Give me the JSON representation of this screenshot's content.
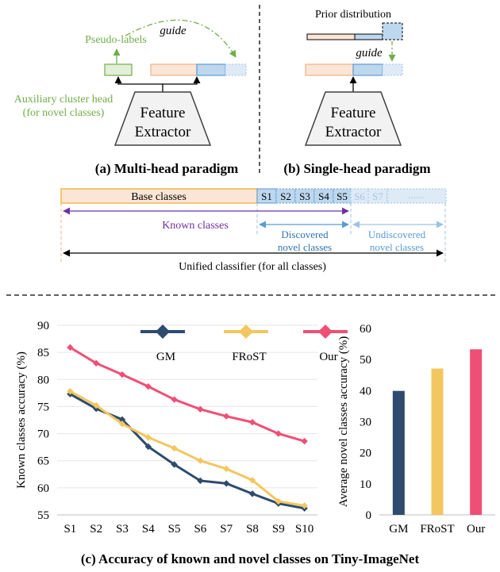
{
  "colors": {
    "green": "#70ad47",
    "green_fill": "#e2efd9",
    "orange_fill": "#fbe5d6",
    "orange_stroke": "#f4b183",
    "base_stroke": "#f2b84b",
    "blue_fill": "#bdd7ee",
    "blue_stroke": "#5b9bd5",
    "blue_light": "#deebf7",
    "purple": "#7030a0",
    "gm": "#2e4b6f",
    "frost": "#f3c75f",
    "our": "#ef4f76",
    "gray_fill": "#f2f2f2"
  },
  "panel_a": {
    "guide": "guide",
    "pseudo_labels": "Pseudo-labels",
    "aux_head_line1": "Auxiliary cluster head",
    "aux_head_line2": "(for novel classes)",
    "extractor_line1": "Feature",
    "extractor_line2": "Extractor",
    "caption": "(a) Multi-head paradigm"
  },
  "panel_b": {
    "prior": "Prior distribution",
    "guide": "guide",
    "extractor_line1": "Feature",
    "extractor_line2": "Extractor",
    "caption": "(b) Single-head paradigm"
  },
  "classifier": {
    "base": "Base classes",
    "sessions": [
      "S1",
      "S2",
      "S3",
      "S4",
      "S5"
    ],
    "future_sessions": [
      "S6",
      "S7"
    ],
    "ellipsis": "......",
    "known": "Known classes",
    "discovered_line1": "Discovered",
    "discovered_line2": "novel classes",
    "undiscovered_line1": "Undiscovered",
    "undiscovered_line2": "novel classes",
    "unified": "Unified classifier (for all classes)"
  },
  "caption_c": "(c) Accuracy of  known and novel classes on Tiny-ImageNet",
  "chart_data": [
    {
      "type": "line",
      "ylabel": "Known classes accuracy (%)",
      "ylim": [
        55,
        90
      ],
      "yticks": [
        55,
        60,
        65,
        70,
        75,
        80,
        85,
        90
      ],
      "categories": [
        "S1",
        "S2",
        "S3",
        "S4",
        "S5",
        "S6",
        "S7",
        "S8",
        "S9",
        "S10"
      ],
      "grid": true,
      "legend": "top",
      "series": [
        {
          "name": "GM",
          "color": "#2e4b6f",
          "values": [
            77.3,
            74.6,
            72.6,
            67.6,
            64.3,
            61.3,
            60.8,
            58.9,
            57.1,
            56.2
          ]
        },
        {
          "name": "FRoST",
          "color": "#f3c75f",
          "values": [
            77.8,
            75.2,
            71.8,
            69.3,
            67.3,
            65.0,
            63.5,
            61.4,
            57.5,
            56.7
          ]
        },
        {
          "name": "Our",
          "color": "#ef4f76",
          "values": [
            85.9,
            83.0,
            80.9,
            78.7,
            76.3,
            74.5,
            73.2,
            72.1,
            70.0,
            68.6
          ]
        }
      ]
    },
    {
      "type": "bar",
      "ylabel": "Average novel classes accuracy (%)",
      "ylim": [
        0,
        60
      ],
      "yticks": [
        0,
        10,
        20,
        30,
        40,
        50,
        60
      ],
      "categories": [
        "GM",
        "FRoST",
        "Our"
      ],
      "colors": [
        "#2e4b6f",
        "#f3c75f",
        "#ef4f76"
      ],
      "values": [
        39.9,
        47.1,
        53.3
      ]
    }
  ]
}
